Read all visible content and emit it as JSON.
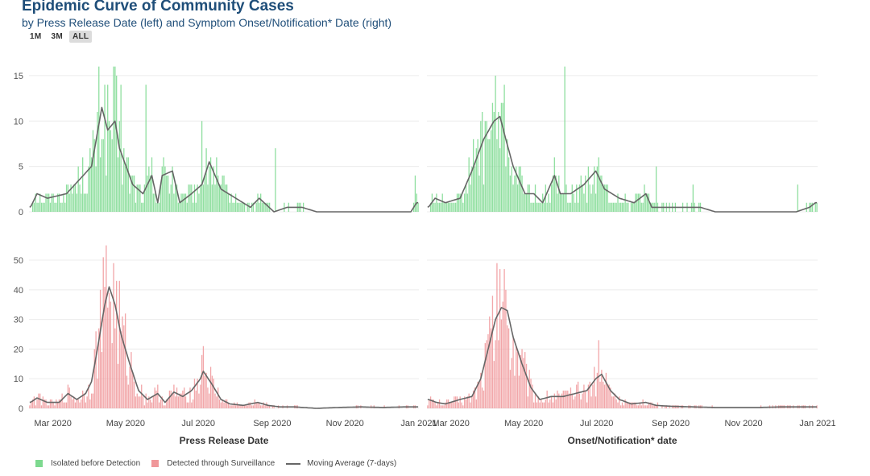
{
  "header": {
    "title": "Epidemic Curve of Community Cases",
    "subtitle": "by Press Release Date (left) and Symptom Onset/Notification* Date (right)"
  },
  "range_buttons": [
    "1M",
    "3M",
    "ALL"
  ],
  "active_range": "ALL",
  "colors": {
    "isolated": "#7dd98f",
    "surveillance": "#f0979a",
    "moving_average": "#666666",
    "grid": "#ececec",
    "title": "#1f4e79"
  },
  "legend": {
    "isolated": "Isolated before Detection",
    "surveillance": "Detected through Surveillance",
    "moving_average": "Moving Average (7-days)"
  },
  "chart_data": [
    {
      "type": "bar",
      "id": "top-left",
      "xlabel": "",
      "series_name": "Isolated before Detection",
      "yticks": [
        0,
        5,
        10,
        15
      ],
      "ylim": [
        0,
        16.5
      ],
      "xticks": [
        "Mar 2020",
        "May 2020",
        "Jul 2020",
        "Sep 2020",
        "Nov 2020",
        "Jan 2021"
      ],
      "peaks": [
        [
          0.5,
          0.5
        ],
        [
          5,
          2
        ],
        [
          12,
          1.5
        ],
        [
          25,
          2
        ],
        [
          42,
          5
        ],
        [
          49,
          11.5
        ],
        [
          53,
          9
        ],
        [
          58,
          10
        ],
        [
          61,
          7
        ],
        [
          70,
          3
        ],
        [
          77,
          2
        ],
        [
          83,
          4
        ],
        [
          87,
          1
        ],
        [
          90,
          4
        ],
        [
          97,
          4.5
        ],
        [
          102,
          1
        ],
        [
          110,
          2
        ],
        [
          117,
          3
        ],
        [
          122,
          5.5
        ],
        [
          130,
          2.5
        ],
        [
          140,
          1.5
        ],
        [
          150,
          0.5
        ],
        [
          156,
          1.5
        ],
        [
          166,
          0
        ],
        [
          175,
          0.5
        ],
        [
          185,
          0.5
        ],
        [
          195,
          0
        ],
        [
          210,
          0
        ],
        [
          235,
          0
        ],
        [
          250,
          0
        ],
        [
          259,
          0
        ],
        [
          263,
          1
        ]
      ],
      "outliers": [
        [
          62,
          14
        ],
        [
          79,
          14
        ],
        [
          117,
          10
        ],
        [
          167,
          7
        ],
        [
          262,
          4
        ]
      ]
    },
    {
      "type": "bar",
      "id": "top-right",
      "xlabel": "",
      "series_name": "Isolated before Detection",
      "yticks": [
        0,
        5,
        10,
        15
      ],
      "ylim": [
        0,
        16.5
      ],
      "xticks": [
        "Mar 2020",
        "May 2020",
        "Jul 2020",
        "Sep 2020",
        "Nov 2020",
        "Jan 2021"
      ],
      "peaks": [
        [
          0.5,
          0.5
        ],
        [
          5,
          1.5
        ],
        [
          12,
          1
        ],
        [
          22,
          1.5
        ],
        [
          30,
          4.5
        ],
        [
          38,
          8
        ],
        [
          45,
          10
        ],
        [
          49,
          10.5
        ],
        [
          53,
          8
        ],
        [
          58,
          5
        ],
        [
          66,
          2
        ],
        [
          72,
          2
        ],
        [
          78,
          1
        ],
        [
          86,
          4
        ],
        [
          90,
          2
        ],
        [
          97,
          2
        ],
        [
          106,
          3
        ],
        [
          114,
          4.5
        ],
        [
          120,
          2.5
        ],
        [
          130,
          1.5
        ],
        [
          140,
          1
        ],
        [
          148,
          2
        ],
        [
          152,
          0.5
        ],
        [
          160,
          0.5
        ],
        [
          175,
          0.5
        ],
        [
          185,
          0.5
        ],
        [
          195,
          0
        ],
        [
          210,
          0
        ],
        [
          235,
          0
        ],
        [
          250,
          0
        ],
        [
          259,
          0.5
        ],
        [
          263,
          1
        ]
      ],
      "outliers": [
        [
          93,
          16
        ],
        [
          155,
          5
        ],
        [
          180,
          3
        ],
        [
          251,
          3
        ]
      ]
    },
    {
      "type": "bar",
      "id": "bottom-left",
      "xlabel": "Press Release Date",
      "series_name": "Detected through Surveillance",
      "yticks": [
        0,
        10,
        20,
        30,
        40,
        50
      ],
      "ylim": [
        0,
        53
      ],
      "xticks": [
        "Mar 2020",
        "May 2020",
        "Jul 2020",
        "Sep 2020",
        "Nov 2020",
        "Jan 2021"
      ],
      "peaks": [
        [
          0.5,
          2
        ],
        [
          5,
          3.5
        ],
        [
          12,
          2
        ],
        [
          20,
          2
        ],
        [
          26,
          5
        ],
        [
          32,
          3
        ],
        [
          38,
          5
        ],
        [
          42,
          9
        ],
        [
          46,
          20
        ],
        [
          51,
          35
        ],
        [
          54,
          41
        ],
        [
          58,
          35
        ],
        [
          62,
          25
        ],
        [
          68,
          15
        ],
        [
          74,
          6
        ],
        [
          80,
          3
        ],
        [
          87,
          5
        ],
        [
          92,
          2
        ],
        [
          98,
          5.5
        ],
        [
          104,
          4
        ],
        [
          110,
          6
        ],
        [
          116,
          10
        ],
        [
          118,
          12.5
        ],
        [
          124,
          8
        ],
        [
          130,
          3
        ],
        [
          136,
          1.5
        ],
        [
          145,
          1
        ],
        [
          155,
          2
        ],
        [
          162,
          1
        ],
        [
          170,
          0.5
        ],
        [
          180,
          0.5
        ],
        [
          195,
          0
        ],
        [
          210,
          0.3
        ],
        [
          225,
          0.5
        ],
        [
          240,
          0.3
        ],
        [
          255,
          0.5
        ],
        [
          263,
          0.5
        ]
      ],
      "outliers": [
        [
          50,
          51
        ],
        [
          57,
          49
        ],
        [
          118,
          21
        ]
      ]
    },
    {
      "type": "bar",
      "id": "bottom-right",
      "xlabel": "Onset/Notification* date",
      "series_name": "Detected through Surveillance",
      "yticks": [
        0,
        10,
        20,
        30,
        40,
        50
      ],
      "ylim": [
        0,
        53
      ],
      "xticks": [
        "Mar 2020",
        "May 2020",
        "Jul 2020",
        "Sep 2020",
        "Nov 2020",
        "Jan 2021"
      ],
      "peaks": [
        [
          0.5,
          3
        ],
        [
          6,
          2
        ],
        [
          12,
          1.5
        ],
        [
          22,
          3
        ],
        [
          30,
          4
        ],
        [
          36,
          10
        ],
        [
          41,
          20
        ],
        [
          46,
          30
        ],
        [
          50,
          34
        ],
        [
          54,
          33
        ],
        [
          58,
          24
        ],
        [
          64,
          15
        ],
        [
          70,
          7
        ],
        [
          76,
          3
        ],
        [
          84,
          4
        ],
        [
          92,
          4
        ],
        [
          100,
          5
        ],
        [
          108,
          6
        ],
        [
          114,
          10
        ],
        [
          118,
          11.5
        ],
        [
          124,
          6
        ],
        [
          130,
          3
        ],
        [
          138,
          1.5
        ],
        [
          148,
          2
        ],
        [
          155,
          1
        ],
        [
          165,
          0.7
        ],
        [
          180,
          0.5
        ],
        [
          195,
          0.3
        ],
        [
          210,
          0.3
        ],
        [
          225,
          0.3
        ],
        [
          240,
          0.5
        ],
        [
          255,
          0.5
        ],
        [
          263,
          0.5
        ]
      ],
      "outliers": [
        [
          49,
          47
        ],
        [
          116,
          23
        ]
      ]
    }
  ]
}
